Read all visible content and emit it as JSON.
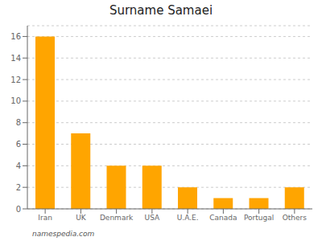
{
  "chart_data": {
    "type": "bar",
    "title": "Surname Samaei",
    "categories": [
      "Iran",
      "UK",
      "Denmark",
      "USA",
      "U.A.E.",
      "Canada",
      "Portugal",
      "Others"
    ],
    "values": [
      16,
      7,
      4,
      4,
      2,
      1,
      1,
      2
    ],
    "color": "#FFA500",
    "ylim": [
      0,
      17
    ],
    "yticks": [
      0,
      2,
      4,
      6,
      8,
      10,
      12,
      14,
      16
    ],
    "grid": true,
    "annotations": [
      "namespedia.com"
    ]
  }
}
